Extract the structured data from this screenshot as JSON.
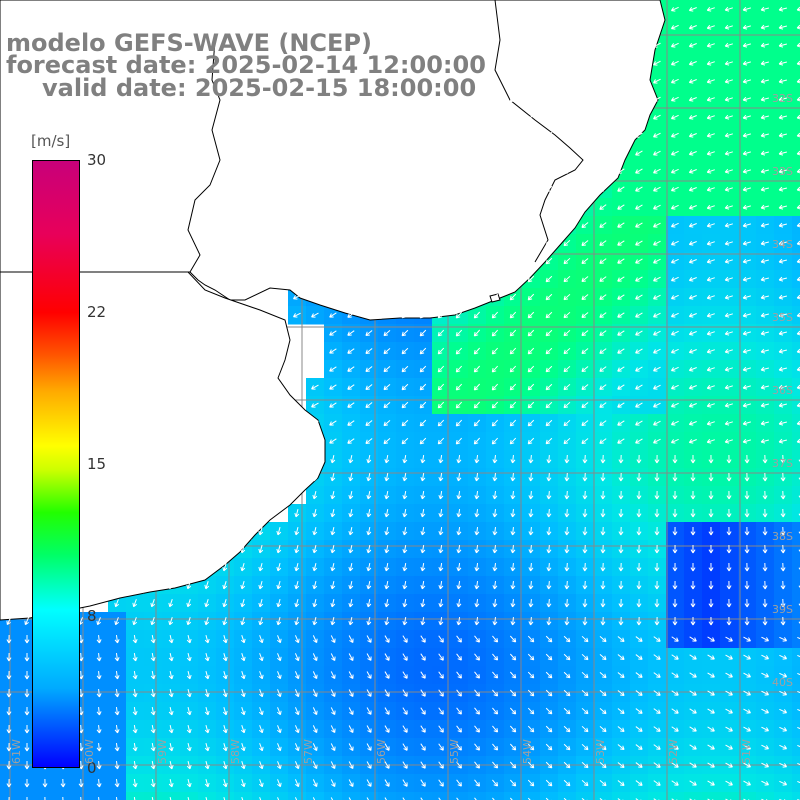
{
  "title": {
    "line1": "modelo GEFS-WAVE (NCEP)",
    "line2": "forecast date: 2025-02-14 12:00:00",
    "line3": "valid date: 2025-02-15 18:00:00"
  },
  "colorbar": {
    "unit": "[m/s]",
    "ticks": [
      "30",
      "22",
      "15",
      "8",
      "0"
    ],
    "range": [
      0,
      30
    ]
  },
  "colors": {
    "land": "#ffffff",
    "grid": "#808080",
    "coastline": "#000000",
    "arrows": "#ffffff",
    "scale": [
      "#0000ff",
      "#00aaff",
      "#00ffff",
      "#00ff66",
      "#22ff00",
      "#ffff00",
      "#ff0000",
      "#c8007a"
    ]
  },
  "lat_labels": [
    "32S",
    "33S",
    "34S",
    "35S",
    "36S",
    "37S",
    "38S",
    "39S",
    "40S"
  ],
  "lon_labels": [
    "61W",
    "60W",
    "59W",
    "58W",
    "57W",
    "56W",
    "55W",
    "54W",
    "53W",
    "52W",
    "51W"
  ]
}
